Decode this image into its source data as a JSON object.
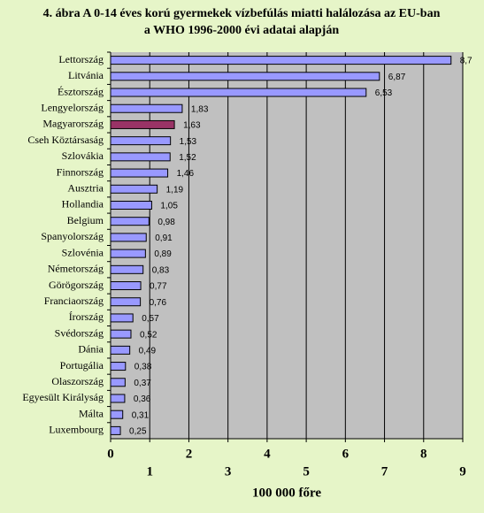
{
  "chart_data": {
    "type": "bar",
    "orientation": "horizontal",
    "title": [
      "4. ábra A 0-14 éves korú gyermekek vízbefúlás miatti halálozása az EU-ban",
      "a WHO 1996-2000 évi adatai alapján"
    ],
    "x_label": "100 000 főre",
    "categories": [
      "Lettország",
      "Litvánia",
      "Észtország",
      "Lengyelország",
      "Magyarország",
      "Cseh Köztársaság",
      "Szlovákia",
      "Finnország",
      "Ausztria",
      "Hollandia",
      "Belgium",
      "Spanyolország",
      "Szlovénia",
      "Németország",
      "Görögország",
      "Franciaország",
      "Írország",
      "Svédország",
      "Dánia",
      "Portugália",
      "Olaszország",
      "Egyesült Királyság",
      "Málta",
      "Luxembourg"
    ],
    "values": [
      8.7,
      6.87,
      6.53,
      1.83,
      1.63,
      1.53,
      1.52,
      1.46,
      1.19,
      1.05,
      0.98,
      0.91,
      0.89,
      0.83,
      0.77,
      0.76,
      0.57,
      0.52,
      0.49,
      0.38,
      0.37,
      0.36,
      0.31,
      0.25
    ],
    "value_labels": [
      "8,7",
      "6,87",
      "6,53",
      "1,83",
      "1,63",
      "1,53",
      "1,52",
      "1,46",
      "1,19",
      "1,05",
      "0,98",
      "0,91",
      "0,89",
      "0,83",
      "0,77",
      "0,76",
      "0,57",
      "0,52",
      "0,49",
      "0,38",
      "0,37",
      "0,36",
      "0,31",
      "0,25"
    ],
    "colors": [
      "#9999ff",
      "#9999ff",
      "#9999ff",
      "#9999ff",
      "#993366",
      "#9999ff",
      "#9999ff",
      "#9999ff",
      "#9999ff",
      "#9999ff",
      "#9999ff",
      "#9999ff",
      "#9999ff",
      "#9999ff",
      "#9999ff",
      "#9999ff",
      "#9999ff",
      "#9999ff",
      "#9999ff",
      "#9999ff",
      "#9999ff",
      "#9999ff",
      "#9999ff",
      "#9999ff"
    ],
    "xlim": [
      0,
      9
    ],
    "xticks": [
      0,
      1,
      2,
      3,
      4,
      5,
      6,
      7,
      8,
      9
    ],
    "grid": true
  }
}
